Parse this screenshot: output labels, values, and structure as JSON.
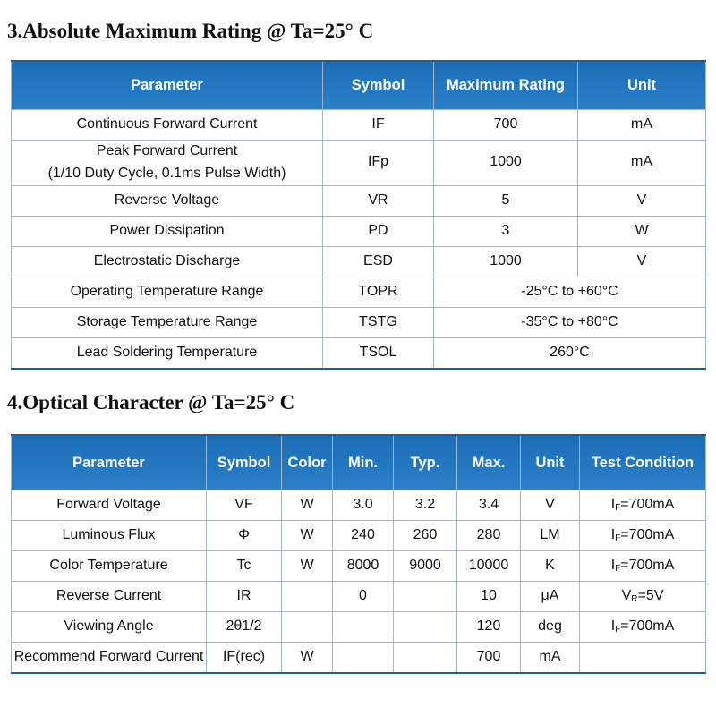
{
  "sections": [
    {
      "title": "3.Absolute Maximum Rating @ Ta=25° C",
      "table": {
        "header": [
          "Parameter",
          "Symbol",
          "Maximum Rating",
          "Unit"
        ],
        "rows": [
          [
            [
              "Continuous Forward Current"
            ],
            [
              "IF"
            ],
            [
              "700"
            ],
            [
              "mA"
            ]
          ],
          [
            [
              "Peak Forward Current",
              "(1/10 Duty Cycle, 0.1ms Pulse Width)"
            ],
            [
              "IFp"
            ],
            [
              "1000"
            ],
            [
              "mA"
            ]
          ],
          [
            [
              "Reverse Voltage"
            ],
            [
              "VR"
            ],
            [
              "5"
            ],
            [
              "V"
            ]
          ],
          [
            [
              "Power Dissipation"
            ],
            [
              "PD"
            ],
            [
              "3"
            ],
            [
              "W"
            ]
          ],
          [
            [
              "Electrostatic Discharge"
            ],
            [
              "ESD"
            ],
            [
              "1000"
            ],
            [
              "V"
            ]
          ],
          [
            [
              "Operating Temperature Range"
            ],
            [
              "TOPR"
            ],
            [
              "-25°C to +60°C"
            ]
          ],
          [
            [
              "Storage Temperature Range"
            ],
            [
              "TSTG"
            ],
            [
              "-35°C to +80°C"
            ]
          ],
          [
            [
              "Lead Soldering Temperature"
            ],
            [
              "TSOL"
            ],
            [
              "260°C"
            ]
          ]
        ]
      }
    },
    {
      "title": "4.Optical Character @ Ta=25° C",
      "table": {
        "header": [
          "Parameter",
          "Symbol",
          "Color",
          "Min.",
          "Typ.",
          "Max.",
          "Unit",
          "Test Condition"
        ],
        "rows": [
          [
            [
              "Forward Voltage"
            ],
            [
              "VF"
            ],
            [
              "W"
            ],
            [
              "3.0"
            ],
            [
              "3.2"
            ],
            [
              "3.4"
            ],
            [
              "V"
            ],
            [
              {
                "base": "I",
                "sub": "F",
                "rest": "=700mA"
              }
            ]
          ],
          [
            [
              "Luminous Flux"
            ],
            [
              "Φ"
            ],
            [
              "W"
            ],
            [
              "240"
            ],
            [
              "260"
            ],
            [
              "280"
            ],
            [
              "LM"
            ],
            [
              {
                "base": "I",
                "sub": "F",
                "rest": "=700mA"
              }
            ]
          ],
          [
            [
              "Color Temperature"
            ],
            [
              "Tc"
            ],
            [
              "W"
            ],
            [
              "8000"
            ],
            [
              "9000"
            ],
            [
              "10000"
            ],
            [
              "K"
            ],
            [
              {
                "base": "I",
                "sub": "F",
                "rest": "=700mA"
              }
            ]
          ],
          [
            [
              "Reverse Current"
            ],
            [
              "IR"
            ],
            null,
            [
              "0"
            ],
            null,
            [
              "10"
            ],
            [
              "μA"
            ],
            [
              {
                "base": "V",
                "sub": "R",
                "rest": "=5V"
              }
            ]
          ],
          [
            [
              "Viewing Angle"
            ],
            [
              "2θ1/2"
            ],
            null,
            null,
            null,
            [
              "120"
            ],
            [
              "deg"
            ],
            [
              {
                "base": "I",
                "sub": "F",
                "rest": "=700mA"
              }
            ]
          ],
          [
            [
              "Recommend Forward Current"
            ],
            [
              "IF(rec)"
            ],
            [
              "W"
            ],
            null,
            null,
            [
              "700"
            ],
            [
              "mA"
            ],
            null
          ]
        ]
      }
    }
  ]
}
